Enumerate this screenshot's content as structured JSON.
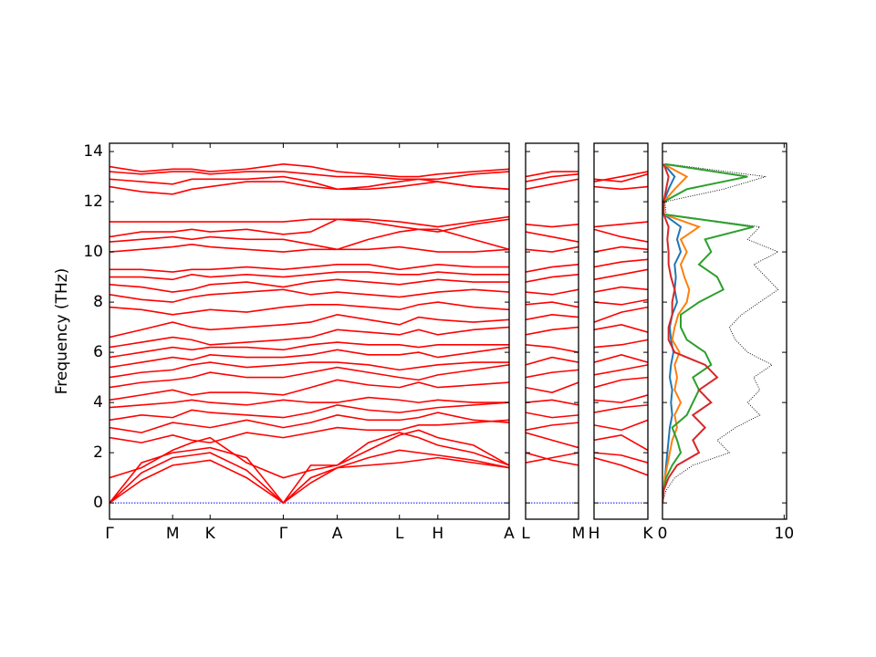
{
  "chart_data": [
    {
      "type": "line",
      "ylabel": "Frequency (THz)",
      "color": "#ff0000",
      "hline": 0,
      "hline_color": "#0000ff",
      "xlim": [
        0,
        4.37
      ],
      "xticks": [
        {
          "value": 0,
          "label": "Γ"
        },
        {
          "value": 0.69,
          "label": "M"
        },
        {
          "value": 1.1,
          "label": "K"
        },
        {
          "value": 1.9,
          "label": "Γ"
        },
        {
          "value": 2.49,
          "label": "A"
        },
        {
          "value": 3.17,
          "label": "L"
        },
        {
          "value": 3.59,
          "label": "H"
        },
        {
          "value": 4.37,
          "label": "A"
        }
      ],
      "ylim": [
        -0.65,
        14.33
      ],
      "yticks": [
        0,
        2,
        4,
        6,
        8,
        10,
        12,
        14
      ],
      "ytick_labels": true,
      "x": [
        0,
        0.35,
        0.69,
        0.9,
        1.1,
        1.5,
        1.9,
        2.2,
        2.49,
        2.83,
        3.17,
        3.38,
        3.59,
        3.98,
        4.37
      ],
      "series": [
        {
          "values": [
            0,
            0.9,
            1.5,
            1.6,
            1.7,
            1.0,
            0,
            0.8,
            1.4,
            1.5,
            1.6,
            1.7,
            1.8,
            1.6,
            1.4
          ]
        },
        {
          "values": [
            0,
            1.2,
            1.8,
            1.9,
            2.0,
            1.3,
            0,
            1.0,
            1.4,
            1.8,
            2.1,
            2.0,
            1.9,
            1.7,
            1.4
          ]
        },
        {
          "values": [
            0,
            1.6,
            2.0,
            2.1,
            2.2,
            1.8,
            0,
            1.5,
            1.5,
            2.4,
            2.8,
            2.6,
            2.3,
            2.0,
            1.5
          ]
        },
        {
          "values": [
            1.0,
            1.4,
            2.1,
            2.4,
            2.6,
            1.6,
            1.0,
            1.3,
            1.5,
            2.1,
            2.7,
            2.9,
            2.6,
            2.3,
            1.5
          ]
        },
        {
          "values": [
            2.6,
            2.4,
            2.7,
            2.5,
            2.4,
            2.8,
            2.6,
            2.8,
            3.0,
            2.9,
            2.9,
            3.1,
            3.1,
            3.2,
            3.3
          ]
        },
        {
          "values": [
            3.0,
            2.8,
            3.2,
            3.1,
            3.0,
            3.3,
            3.0,
            3.2,
            3.5,
            3.3,
            3.3,
            3.4,
            3.6,
            3.3,
            3.2
          ]
        },
        {
          "values": [
            3.3,
            3.5,
            3.4,
            3.7,
            3.6,
            3.5,
            3.4,
            3.6,
            3.9,
            3.7,
            3.6,
            3.7,
            3.8,
            3.9,
            4.0
          ]
        },
        {
          "values": [
            3.8,
            3.9,
            4.0,
            4.1,
            4.0,
            3.9,
            4.1,
            4.0,
            4.0,
            4.2,
            4.1,
            4.0,
            4.1,
            4.0,
            4.0
          ]
        },
        {
          "values": [
            4.1,
            4.3,
            4.5,
            4.3,
            4.4,
            4.4,
            4.3,
            4.6,
            4.9,
            4.7,
            4.6,
            4.8,
            4.6,
            4.7,
            4.8
          ]
        },
        {
          "values": [
            4.6,
            4.8,
            4.9,
            5.0,
            5.2,
            5.0,
            5.0,
            5.2,
            5.4,
            5.2,
            5.0,
            4.9,
            5.1,
            5.3,
            5.5
          ]
        },
        {
          "values": [
            5.0,
            5.2,
            5.3,
            5.5,
            5.6,
            5.4,
            5.5,
            5.6,
            5.6,
            5.5,
            5.3,
            5.4,
            5.5,
            5.6,
            5.6
          ]
        },
        {
          "values": [
            5.4,
            5.6,
            5.8,
            5.7,
            5.9,
            5.8,
            5.8,
            5.9,
            6.1,
            5.9,
            5.9,
            6.0,
            5.8,
            6.0,
            6.2
          ]
        },
        {
          "values": [
            5.8,
            6.0,
            6.2,
            6.1,
            6.2,
            6.2,
            6.1,
            6.3,
            6.4,
            6.3,
            6.3,
            6.2,
            6.3,
            6.3,
            6.3
          ]
        },
        {
          "values": [
            6.2,
            6.4,
            6.6,
            6.5,
            6.3,
            6.4,
            6.5,
            6.6,
            6.9,
            6.8,
            6.7,
            6.9,
            6.7,
            6.9,
            7.0
          ]
        },
        {
          "values": [
            6.6,
            6.9,
            7.2,
            7.0,
            6.9,
            7.0,
            7.1,
            7.2,
            7.5,
            7.3,
            7.1,
            7.4,
            7.3,
            7.2,
            7.3
          ]
        },
        {
          "values": [
            7.8,
            7.7,
            7.5,
            7.6,
            7.7,
            7.6,
            7.8,
            7.9,
            7.9,
            7.8,
            7.7,
            7.9,
            8.0,
            7.8,
            7.7
          ]
        },
        {
          "values": [
            8.3,
            8.1,
            8.0,
            8.2,
            8.3,
            8.4,
            8.5,
            8.3,
            8.4,
            8.3,
            8.2,
            8.3,
            8.4,
            8.5,
            8.4
          ]
        },
        {
          "values": [
            8.7,
            8.6,
            8.4,
            8.5,
            8.7,
            8.8,
            8.6,
            8.8,
            8.9,
            8.8,
            8.7,
            8.8,
            8.9,
            8.8,
            8.8
          ]
        },
        {
          "values": [
            9.0,
            9.0,
            8.9,
            9.1,
            9.0,
            9.1,
            9.0,
            9.1,
            9.2,
            9.2,
            9.1,
            9.1,
            9.2,
            9.1,
            9.1
          ]
        },
        {
          "values": [
            9.3,
            9.3,
            9.2,
            9.3,
            9.3,
            9.4,
            9.3,
            9.4,
            9.5,
            9.5,
            9.3,
            9.4,
            9.5,
            9.4,
            9.4
          ]
        },
        {
          "values": [
            10.0,
            10.1,
            10.2,
            10.3,
            10.2,
            10.1,
            10.0,
            10.1,
            10.1,
            10.1,
            10.2,
            10.1,
            10.0,
            10.0,
            10.1
          ]
        },
        {
          "values": [
            10.4,
            10.5,
            10.6,
            10.5,
            10.6,
            10.5,
            10.5,
            10.3,
            10.1,
            10.5,
            10.8,
            10.9,
            10.9,
            10.5,
            10.1
          ]
        },
        {
          "values": [
            10.6,
            10.8,
            10.8,
            10.9,
            10.8,
            10.9,
            10.7,
            10.8,
            11.3,
            11.2,
            11.0,
            10.9,
            10.8,
            11.1,
            11.3
          ]
        },
        {
          "values": [
            11.2,
            11.2,
            11.2,
            11.2,
            11.2,
            11.2,
            11.2,
            11.3,
            11.3,
            11.3,
            11.2,
            11.1,
            11.0,
            11.2,
            11.4
          ]
        },
        {
          "values": [
            12.6,
            12.4,
            12.3,
            12.5,
            12.6,
            12.8,
            12.8,
            12.6,
            12.5,
            12.5,
            12.6,
            12.7,
            12.8,
            12.6,
            12.5
          ]
        },
        {
          "values": [
            12.9,
            12.8,
            12.7,
            12.9,
            12.9,
            12.9,
            13.0,
            12.8,
            12.5,
            12.6,
            12.8,
            12.9,
            12.8,
            12.6,
            12.5
          ]
        },
        {
          "values": [
            13.2,
            13.1,
            13.2,
            13.2,
            13.1,
            13.2,
            13.2,
            13.1,
            13.0,
            13.0,
            12.9,
            12.9,
            12.9,
            13.1,
            13.2
          ]
        },
        {
          "values": [
            13.4,
            13.2,
            13.3,
            13.3,
            13.2,
            13.3,
            13.5,
            13.4,
            13.2,
            13.1,
            13.0,
            13.0,
            13.1,
            13.2,
            13.3
          ]
        }
      ]
    },
    {
      "type": "line",
      "color": "#ff0000",
      "hline": 0,
      "hline_color": "#0000ff",
      "xlim": [
        0,
        0.58
      ],
      "xticks": [
        {
          "value": 0,
          "label": "L"
        },
        {
          "value": 0.58,
          "label": "M"
        }
      ],
      "ylim": [
        -0.65,
        14.33
      ],
      "yticks": [
        0,
        2,
        4,
        6,
        8,
        10,
        12,
        14
      ],
      "ytick_labels": false,
      "x": [
        0,
        0.29,
        0.58
      ],
      "series": [
        {
          "values": [
            1.6,
            1.8,
            2.0
          ]
        },
        {
          "values": [
            2.0,
            1.7,
            1.5
          ]
        },
        {
          "values": [
            2.8,
            2.5,
            2.2
          ]
        },
        {
          "values": [
            2.9,
            3.1,
            3.2
          ]
        },
        {
          "values": [
            3.6,
            3.4,
            3.5
          ]
        },
        {
          "values": [
            4.0,
            4.1,
            3.9
          ]
        },
        {
          "values": [
            4.6,
            4.4,
            4.8
          ]
        },
        {
          "values": [
            5.0,
            5.2,
            5.3
          ]
        },
        {
          "values": [
            5.5,
            5.8,
            5.6
          ]
        },
        {
          "values": [
            6.3,
            6.2,
            6.0
          ]
        },
        {
          "values": [
            6.7,
            6.9,
            7.0
          ]
        },
        {
          "values": [
            7.3,
            7.5,
            7.4
          ]
        },
        {
          "values": [
            7.9,
            8.0,
            7.8
          ]
        },
        {
          "values": [
            8.4,
            8.3,
            8.5
          ]
        },
        {
          "values": [
            8.8,
            9.0,
            9.1
          ]
        },
        {
          "values": [
            9.2,
            9.4,
            9.5
          ]
        },
        {
          "values": [
            10.1,
            10.0,
            10.2
          ]
        },
        {
          "values": [
            10.8,
            10.6,
            10.4
          ]
        },
        {
          "values": [
            11.1,
            11.0,
            11.1
          ]
        },
        {
          "values": [
            12.5,
            12.7,
            12.9
          ]
        },
        {
          "values": [
            12.8,
            13.0,
            13.1
          ]
        },
        {
          "values": [
            13.0,
            13.2,
            13.2
          ]
        }
      ]
    },
    {
      "type": "line",
      "color": "#ff0000",
      "hline": 0,
      "hline_color": "#0000ff",
      "xlim": [
        0,
        0.59
      ],
      "xticks": [
        {
          "value": 0,
          "label": "H"
        },
        {
          "value": 0.59,
          "label": "K"
        }
      ],
      "ylim": [
        -0.65,
        14.33
      ],
      "yticks": [
        0,
        2,
        4,
        6,
        8,
        10,
        12,
        14
      ],
      "ytick_labels": false,
      "x": [
        0,
        0.3,
        0.59
      ],
      "series": [
        {
          "values": [
            1.8,
            1.5,
            1.1
          ]
        },
        {
          "values": [
            2.0,
            1.9,
            1.6
          ]
        },
        {
          "values": [
            2.5,
            2.7,
            2.1
          ]
        },
        {
          "values": [
            3.1,
            2.9,
            3.3
          ]
        },
        {
          "values": [
            3.6,
            3.8,
            3.9
          ]
        },
        {
          "values": [
            4.1,
            4.0,
            4.3
          ]
        },
        {
          "values": [
            4.6,
            4.9,
            5.0
          ]
        },
        {
          "values": [
            5.1,
            5.3,
            5.5
          ]
        },
        {
          "values": [
            5.6,
            5.9,
            5.6
          ]
        },
        {
          "values": [
            6.2,
            6.3,
            6.5
          ]
        },
        {
          "values": [
            6.9,
            7.1,
            6.8
          ]
        },
        {
          "values": [
            7.2,
            7.6,
            7.8
          ]
        },
        {
          "values": [
            8.0,
            7.9,
            8.1
          ]
        },
        {
          "values": [
            8.4,
            8.6,
            8.5
          ]
        },
        {
          "values": [
            8.9,
            9.1,
            9.3
          ]
        },
        {
          "values": [
            9.4,
            9.6,
            9.7
          ]
        },
        {
          "values": [
            10.0,
            10.2,
            10.1
          ]
        },
        {
          "values": [
            10.9,
            10.6,
            10.4
          ]
        },
        {
          "values": [
            11.0,
            11.1,
            11.2
          ]
        },
        {
          "values": [
            12.6,
            12.5,
            12.6
          ]
        },
        {
          "values": [
            12.9,
            12.8,
            13.1
          ]
        },
        {
          "values": [
            12.8,
            13.0,
            13.2
          ]
        }
      ]
    },
    {
      "type": "dos",
      "xlim": [
        0,
        10.2
      ],
      "xticks": [
        0,
        10
      ],
      "ylim": [
        -0.65,
        14.33
      ],
      "yticks": [
        0,
        2,
        4,
        6,
        8,
        10,
        12,
        14
      ],
      "ytick_labels": false,
      "y": [
        0,
        0.5,
        1,
        1.5,
        2,
        2.5,
        3,
        3.5,
        4,
        4.5,
        5,
        5.5,
        6,
        6.5,
        7,
        7.5,
        8,
        8.5,
        9,
        9.5,
        10,
        10.5,
        11,
        11.5,
        12,
        12.5,
        13,
        13.5
      ],
      "series": [
        {
          "color": "#000000",
          "linestyle": "dotted",
          "values": [
            0,
            0.3,
            1.0,
            2.5,
            5.5,
            4.5,
            6,
            8,
            7,
            8,
            7.5,
            9,
            7,
            6,
            5.5,
            6.5,
            8,
            9.5,
            8.5,
            7.5,
            9.5,
            7,
            8,
            0.3,
            0.2,
            5,
            8.5,
            0.5
          ]
        },
        {
          "color": "#1f77b4",
          "linestyle": "solid",
          "values": [
            0,
            0.1,
            0.2,
            0.3,
            0.4,
            0.5,
            0.6,
            0.8,
            0.7,
            0.8,
            0.6,
            0.7,
            0.9,
            0.7,
            0.6,
            0.8,
            1.2,
            1.0,
            1.1,
            1.0,
            1.5,
            1.2,
            1.5,
            0.1,
            0.1,
            0.5,
            1.0,
            0.1
          ]
        },
        {
          "color": "#ff7f0e",
          "linestyle": "solid",
          "values": [
            0,
            0.1,
            0.2,
            0.4,
            0.6,
            0.8,
            1.2,
            1.0,
            1.5,
            1.0,
            1.2,
            1.0,
            1.4,
            0.8,
            1.0,
            1.3,
            2.0,
            2.2,
            1.8,
            1.5,
            2.0,
            1.5,
            3.0,
            0.1,
            0.1,
            1.0,
            2.0,
            0.1
          ]
        },
        {
          "color": "#2ca02c",
          "linestyle": "solid",
          "values": [
            0,
            0.1,
            0.3,
            0.8,
            1.5,
            1.2,
            0.8,
            2.0,
            2.5,
            3.0,
            2.5,
            4.0,
            3.5,
            2.0,
            1.5,
            1.5,
            3.0,
            5.0,
            4.5,
            3.0,
            4.0,
            3.5,
            7.5,
            0.1,
            0.1,
            2.0,
            7.0,
            0.2
          ]
        },
        {
          "color": "#d62728",
          "linestyle": "solid",
          "values": [
            0,
            0.1,
            0.5,
            1.2,
            3.0,
            2.5,
            3.5,
            2.5,
            4.0,
            3.0,
            4.5,
            3.5,
            1.0,
            0.5,
            0.5,
            0.8,
            0.8,
            1.0,
            0.7,
            0.5,
            0.5,
            0.4,
            0.5,
            0.1,
            0.1,
            0.3,
            0.5,
            0.1
          ]
        }
      ]
    }
  ]
}
